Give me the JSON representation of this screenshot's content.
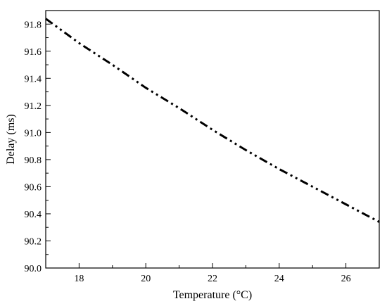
{
  "chart_data": {
    "type": "line",
    "title": "",
    "xlabel": "Temperature (°C)",
    "ylabel": "Delay (ms)",
    "xlim": [
      17,
      27
    ],
    "ylim": [
      90.0,
      91.9
    ],
    "x_ticks": [
      18,
      20,
      22,
      24,
      26
    ],
    "x_tick_labels": [
      "18",
      "20",
      "22",
      "24",
      "26"
    ],
    "y_ticks": [
      90.0,
      90.2,
      90.4,
      90.6,
      90.8,
      91.0,
      91.2,
      91.4,
      91.6,
      91.8
    ],
    "y_tick_labels": [
      "90.0",
      "90.2",
      "90.4",
      "90.6",
      "90.8",
      "91.0",
      "91.2",
      "91.4",
      "91.6",
      "91.8"
    ],
    "grid": false,
    "legend": "none",
    "series": [
      {
        "line_style": "dash-dot-dot",
        "color": "#000000",
        "x": [
          17,
          18,
          19,
          20,
          21,
          22,
          23,
          24,
          25,
          26,
          27
        ],
        "y": [
          91.84,
          91.66,
          91.5,
          91.33,
          91.18,
          91.02,
          90.87,
          90.73,
          90.6,
          90.47,
          90.34
        ]
      }
    ]
  }
}
